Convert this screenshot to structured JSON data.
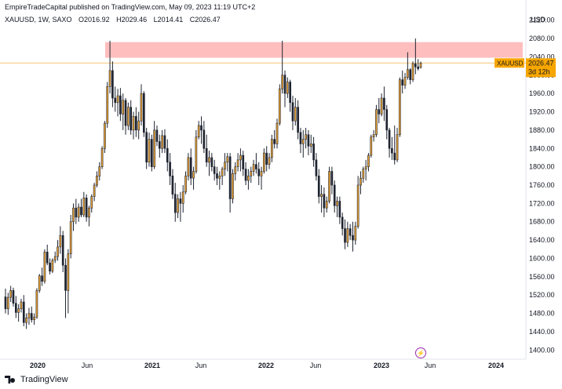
{
  "header": {
    "publisher_line": "EmpireTradeCapital published on TradingView.com, May 09, 2023 11:19 UTC+2"
  },
  "symbol": {
    "name": "XAUUSD, 1W, SAXO",
    "open": "O2016.92",
    "high": "H2029.46",
    "low": "L2014.41",
    "close": "C2026.47"
  },
  "price_tag": {
    "label": "XAUUSD",
    "value": "2026.47",
    "countdown": "3d 12h"
  },
  "footer": {
    "logo_text": "TradingView"
  },
  "colors": {
    "up": "#f0a431",
    "down": "#1f2430",
    "zone": "#ffb3b3",
    "price_line": "#f7c87a",
    "tag": "#f7a600"
  },
  "chart_data": {
    "type": "candlestick",
    "title": "",
    "ylabel": "USD",
    "ylim": [
      1380,
      2140
    ],
    "yticks": [
      2120,
      2080,
      2040,
      2000,
      1960,
      1920,
      1880,
      1840,
      1800,
      1760,
      1720,
      1680,
      1640,
      1600,
      1560,
      1520,
      1480,
      1440,
      1400
    ],
    "xticks": [
      "2020",
      "Jun",
      "2021",
      "Jun",
      "2022",
      "Jun",
      "2023",
      "Jun",
      "2024"
    ],
    "resistance_zone": [
      2038,
      2072
    ],
    "last_price": 2026.47,
    "candles": [
      [
        1516,
        1534,
        1480,
        1490
      ],
      [
        1490,
        1525,
        1477,
        1515
      ],
      [
        1515,
        1540,
        1505,
        1530
      ],
      [
        1530,
        1536,
        1495,
        1502
      ],
      [
        1502,
        1518,
        1470,
        1482
      ],
      [
        1482,
        1500,
        1462,
        1490
      ],
      [
        1490,
        1512,
        1482,
        1505
      ],
      [
        1505,
        1520,
        1452,
        1460
      ],
      [
        1460,
        1480,
        1446,
        1470
      ],
      [
        1470,
        1492,
        1455,
        1480
      ],
      [
        1480,
        1495,
        1460,
        1466
      ],
      [
        1466,
        1480,
        1455,
        1472
      ],
      [
        1472,
        1535,
        1468,
        1530
      ],
      [
        1530,
        1566,
        1525,
        1562
      ],
      [
        1562,
        1580,
        1540,
        1550
      ],
      [
        1550,
        1620,
        1545,
        1614
      ],
      [
        1614,
        1630,
        1585,
        1590
      ],
      [
        1590,
        1600,
        1565,
        1572
      ],
      [
        1572,
        1600,
        1568,
        1596
      ],
      [
        1596,
        1615,
        1590,
        1604
      ],
      [
        1604,
        1640,
        1595,
        1625
      ],
      [
        1625,
        1670,
        1610,
        1650
      ],
      [
        1650,
        1660,
        1570,
        1585
      ],
      [
        1585,
        1600,
        1470,
        1530
      ],
      [
        1530,
        1620,
        1480,
        1610
      ],
      [
        1610,
        1695,
        1600,
        1680
      ],
      [
        1680,
        1720,
        1660,
        1710
      ],
      [
        1710,
        1730,
        1675,
        1690
      ],
      [
        1690,
        1720,
        1680,
        1712
      ],
      [
        1712,
        1730,
        1690,
        1695
      ],
      [
        1695,
        1745,
        1690,
        1732
      ],
      [
        1732,
        1740,
        1680,
        1690
      ],
      [
        1690,
        1715,
        1670,
        1710
      ],
      [
        1710,
        1740,
        1700,
        1735
      ],
      [
        1735,
        1765,
        1725,
        1760
      ],
      [
        1760,
        1790,
        1755,
        1780
      ],
      [
        1780,
        1810,
        1770,
        1800
      ],
      [
        1800,
        1845,
        1795,
        1840
      ],
      [
        1840,
        1900,
        1830,
        1895
      ],
      [
        1895,
        1985,
        1885,
        1975
      ],
      [
        1975,
        2075,
        1960,
        2010
      ],
      [
        2010,
        2030,
        1930,
        1950
      ],
      [
        1950,
        1975,
        1920,
        1940
      ],
      [
        1940,
        1970,
        1910,
        1955
      ],
      [
        1955,
        1972,
        1900,
        1915
      ],
      [
        1915,
        1960,
        1880,
        1945
      ],
      [
        1945,
        1950,
        1870,
        1890
      ],
      [
        1890,
        1940,
        1880,
        1930
      ],
      [
        1930,
        1945,
        1870,
        1880
      ],
      [
        1880,
        1920,
        1860,
        1910
      ],
      [
        1910,
        1930,
        1865,
        1880
      ],
      [
        1880,
        1920,
        1860,
        1900
      ],
      [
        1900,
        1980,
        1890,
        1960
      ],
      [
        1960,
        1965,
        1865,
        1875
      ],
      [
        1875,
        1885,
        1795,
        1810
      ],
      [
        1810,
        1875,
        1800,
        1860
      ],
      [
        1860,
        1870,
        1790,
        1800
      ],
      [
        1800,
        1900,
        1795,
        1880
      ],
      [
        1880,
        1890,
        1845,
        1855
      ],
      [
        1855,
        1870,
        1820,
        1840
      ],
      [
        1840,
        1880,
        1830,
        1868
      ],
      [
        1868,
        1882,
        1830,
        1840
      ],
      [
        1840,
        1860,
        1790,
        1810
      ],
      [
        1810,
        1830,
        1760,
        1780
      ],
      [
        1780,
        1795,
        1730,
        1740
      ],
      [
        1740,
        1765,
        1680,
        1700
      ],
      [
        1700,
        1740,
        1688,
        1730
      ],
      [
        1730,
        1745,
        1680,
        1720
      ],
      [
        1720,
        1760,
        1700,
        1745
      ],
      [
        1745,
        1790,
        1740,
        1780
      ],
      [
        1780,
        1830,
        1770,
        1820
      ],
      [
        1820,
        1840,
        1760,
        1775
      ],
      [
        1775,
        1800,
        1750,
        1790
      ],
      [
        1790,
        1880,
        1785,
        1865
      ],
      [
        1865,
        1900,
        1860,
        1890
      ],
      [
        1890,
        1910,
        1850,
        1880
      ],
      [
        1880,
        1900,
        1830,
        1840
      ],
      [
        1840,
        1870,
        1800,
        1810
      ],
      [
        1810,
        1835,
        1780,
        1820
      ],
      [
        1820,
        1830,
        1790,
        1800
      ],
      [
        1800,
        1815,
        1770,
        1785
      ],
      [
        1785,
        1800,
        1760,
        1775
      ],
      [
        1775,
        1790,
        1750,
        1780
      ],
      [
        1780,
        1800,
        1760,
        1795
      ],
      [
        1795,
        1830,
        1780,
        1810
      ],
      [
        1810,
        1830,
        1790,
        1822
      ],
      [
        1822,
        1830,
        1700,
        1730
      ],
      [
        1730,
        1795,
        1720,
        1785
      ],
      [
        1785,
        1810,
        1770,
        1800
      ],
      [
        1800,
        1830,
        1790,
        1815
      ],
      [
        1815,
        1840,
        1790,
        1825
      ],
      [
        1825,
        1835,
        1780,
        1795
      ],
      [
        1795,
        1810,
        1760,
        1770
      ],
      [
        1770,
        1795,
        1750,
        1780
      ],
      [
        1780,
        1800,
        1765,
        1790
      ],
      [
        1790,
        1815,
        1780,
        1805
      ],
      [
        1805,
        1830,
        1785,
        1795
      ],
      [
        1795,
        1810,
        1760,
        1780
      ],
      [
        1780,
        1800,
        1750,
        1790
      ],
      [
        1790,
        1840,
        1785,
        1830
      ],
      [
        1830,
        1845,
        1790,
        1805
      ],
      [
        1805,
        1830,
        1795,
        1820
      ],
      [
        1820,
        1870,
        1810,
        1860
      ],
      [
        1860,
        1880,
        1840,
        1850
      ],
      [
        1850,
        1905,
        1840,
        1895
      ],
      [
        1895,
        1980,
        1890,
        1970
      ],
      [
        1970,
        2075,
        1960,
        2000
      ],
      [
        2000,
        2010,
        1930,
        1960
      ],
      [
        1960,
        1995,
        1950,
        1985
      ],
      [
        1985,
        1990,
        1920,
        1940
      ],
      [
        1940,
        1955,
        1880,
        1900
      ],
      [
        1900,
        1950,
        1890,
        1930
      ],
      [
        1930,
        1945,
        1860,
        1875
      ],
      [
        1875,
        1885,
        1830,
        1850
      ],
      [
        1850,
        1880,
        1820,
        1860
      ],
      [
        1860,
        1885,
        1840,
        1870
      ],
      [
        1870,
        1880,
        1825,
        1845
      ],
      [
        1845,
        1870,
        1830,
        1850
      ],
      [
        1850,
        1865,
        1800,
        1815
      ],
      [
        1815,
        1830,
        1770,
        1780
      ],
      [
        1780,
        1795,
        1720,
        1735
      ],
      [
        1735,
        1760,
        1700,
        1740
      ],
      [
        1740,
        1755,
        1690,
        1710
      ],
      [
        1710,
        1735,
        1700,
        1725
      ],
      [
        1725,
        1800,
        1720,
        1790
      ],
      [
        1790,
        1800,
        1740,
        1760
      ],
      [
        1760,
        1770,
        1700,
        1715
      ],
      [
        1715,
        1735,
        1690,
        1725
      ],
      [
        1725,
        1735,
        1675,
        1690
      ],
      [
        1690,
        1700,
        1650,
        1665
      ],
      [
        1665,
        1685,
        1620,
        1635
      ],
      [
        1635,
        1680,
        1625,
        1665
      ],
      [
        1665,
        1675,
        1640,
        1650
      ],
      [
        1650,
        1680,
        1615,
        1640
      ],
      [
        1640,
        1680,
        1630,
        1670
      ],
      [
        1670,
        1780,
        1665,
        1760
      ],
      [
        1760,
        1790,
        1740,
        1775
      ],
      [
        1775,
        1800,
        1765,
        1795
      ],
      [
        1795,
        1815,
        1770,
        1800
      ],
      [
        1800,
        1830,
        1790,
        1825
      ],
      [
        1825,
        1870,
        1820,
        1865
      ],
      [
        1865,
        1880,
        1855,
        1870
      ],
      [
        1870,
        1935,
        1865,
        1925
      ],
      [
        1925,
        1950,
        1895,
        1915
      ],
      [
        1915,
        1960,
        1910,
        1950
      ],
      [
        1950,
        1975,
        1900,
        1925
      ],
      [
        1925,
        1935,
        1860,
        1880
      ],
      [
        1880,
        1885,
        1820,
        1840
      ],
      [
        1840,
        1865,
        1815,
        1830
      ],
      [
        1830,
        1890,
        1805,
        1815
      ],
      [
        1815,
        1885,
        1810,
        1870
      ],
      [
        1870,
        1995,
        1865,
        1990
      ],
      [
        1990,
        2010,
        1960,
        1978
      ],
      [
        1978,
        2005,
        1970,
        1995
      ],
      [
        1995,
        2050,
        1990,
        2012
      ],
      [
        2012,
        2015,
        1980,
        1990
      ],
      [
        1990,
        2030,
        1985,
        2025
      ],
      [
        2025,
        2080,
        2002,
        2018
      ],
      [
        2018,
        2035,
        2010,
        2014
      ],
      [
        2016.92,
        2029.46,
        2014.41,
        2026.47
      ]
    ]
  }
}
